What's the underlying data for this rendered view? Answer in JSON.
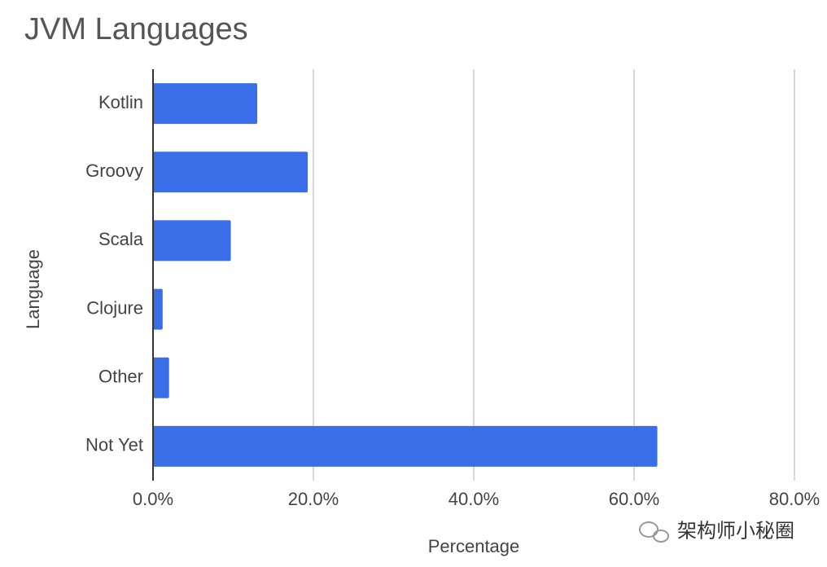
{
  "chart_data": {
    "type": "bar",
    "orientation": "horizontal",
    "title": "JVM Languages",
    "x_label": "Percentage",
    "y_label": "Language",
    "categories": [
      "Kotlin",
      "Groovy",
      "Scala",
      "Clojure",
      "Other",
      "Not Yet"
    ],
    "values": [
      13.0,
      19.3,
      9.7,
      1.2,
      2.0,
      62.9
    ],
    "color": "#3a6ee8",
    "xlim": [
      0,
      80
    ],
    "xticks": [
      {
        "value": 0,
        "label": "0.0%"
      },
      {
        "value": 20,
        "label": "20.0%"
      },
      {
        "value": 40,
        "label": "40.0%"
      },
      {
        "value": 60,
        "label": "60.0%"
      },
      {
        "value": 80,
        "label": "80.0%"
      }
    ],
    "grid": true,
    "watermark": "架构师小秘圈"
  }
}
